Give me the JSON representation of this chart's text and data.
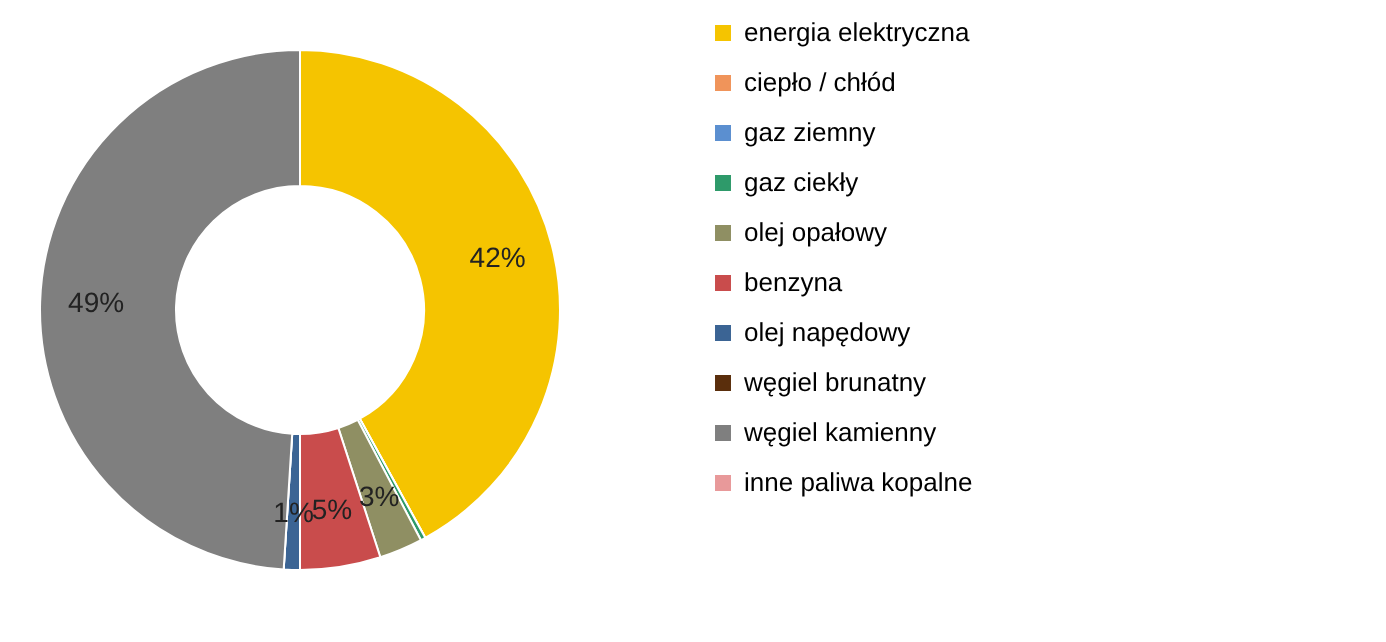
{
  "chart_data": {
    "type": "donut",
    "categories": [
      "energia elektryczna",
      "ciepło / chłód",
      "gaz ziemny",
      "gaz ciekły",
      "olej opałowy",
      "benzyna",
      "olej napędowy",
      "węgiel brunatny",
      "węgiel kamienny",
      "inne paliwa kopalne"
    ],
    "values": [
      42,
      0,
      0,
      0.3,
      2.7,
      5,
      1,
      0,
      49,
      0
    ],
    "value_labels": [
      "42%",
      null,
      null,
      null,
      "3%",
      "5%",
      "1%",
      null,
      "49%",
      null
    ],
    "colors": [
      "#f5c400",
      "#f0945a",
      "#5b8fd0",
      "#2e9a6a",
      "#8f8f63",
      "#c94c4c",
      "#3b6494",
      "#5a2e0c",
      "#7f7f7f",
      "#e8999a"
    ],
    "legend": "right"
  }
}
